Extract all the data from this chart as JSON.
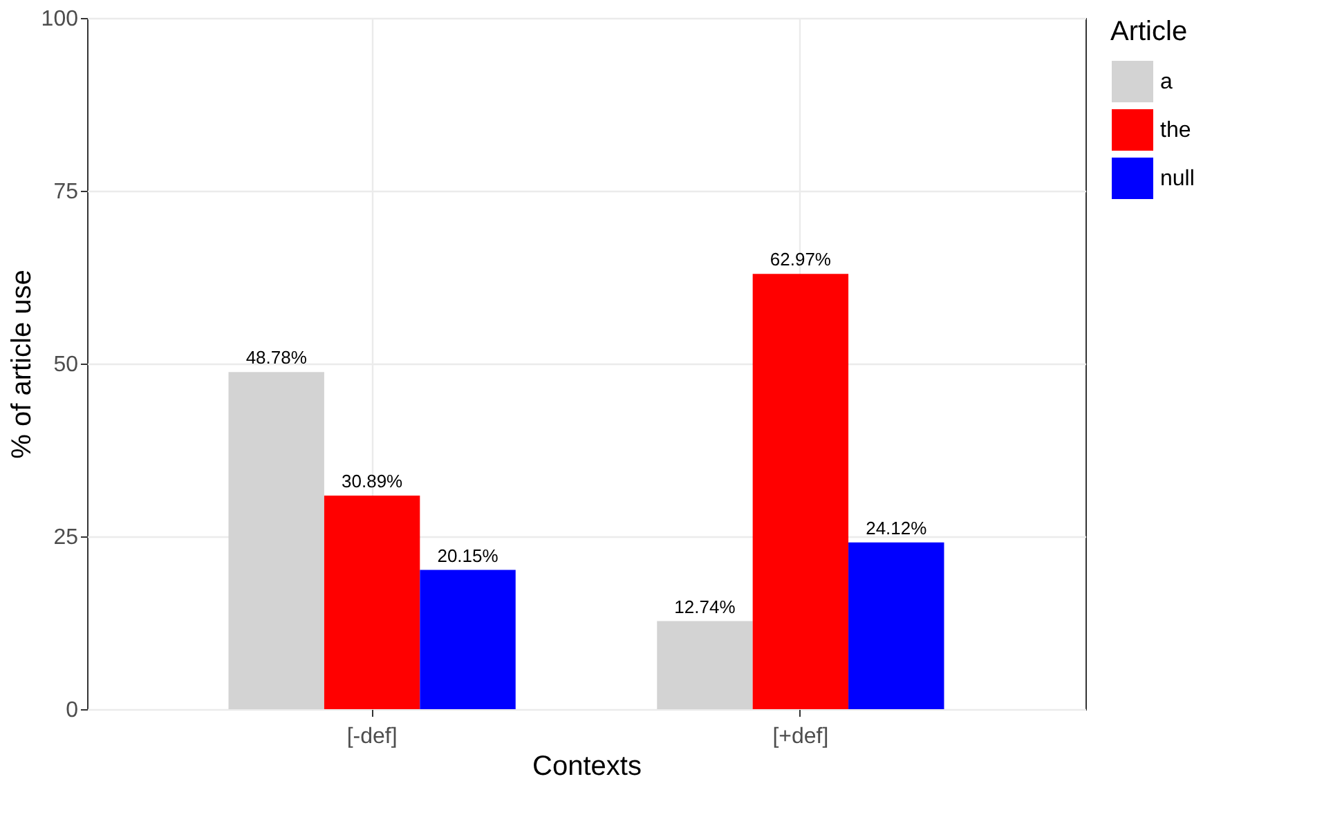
{
  "chart_data": {
    "type": "bar",
    "xlabel": "Contexts",
    "ylabel": "% of article use",
    "legend_title": "Article",
    "categories": [
      "[-def]",
      "[+def]"
    ],
    "series": [
      {
        "name": "a",
        "color": "#d3d3d3",
        "values": [
          48.78,
          12.74
        ],
        "value_labels": [
          "48.78%",
          "12.74%"
        ]
      },
      {
        "name": "the",
        "color": "#ff0000",
        "values": [
          30.89,
          62.97
        ],
        "value_labels": [
          "30.89%",
          "62.97%"
        ]
      },
      {
        "name": "null",
        "color": "#0000ff",
        "values": [
          20.15,
          24.12
        ],
        "value_labels": [
          "20.15%",
          "24.12%"
        ]
      }
    ],
    "ylim": [
      0,
      100
    ],
    "yticks": [
      0,
      25,
      50,
      75,
      100
    ],
    "grid": true,
    "legend": "right"
  }
}
